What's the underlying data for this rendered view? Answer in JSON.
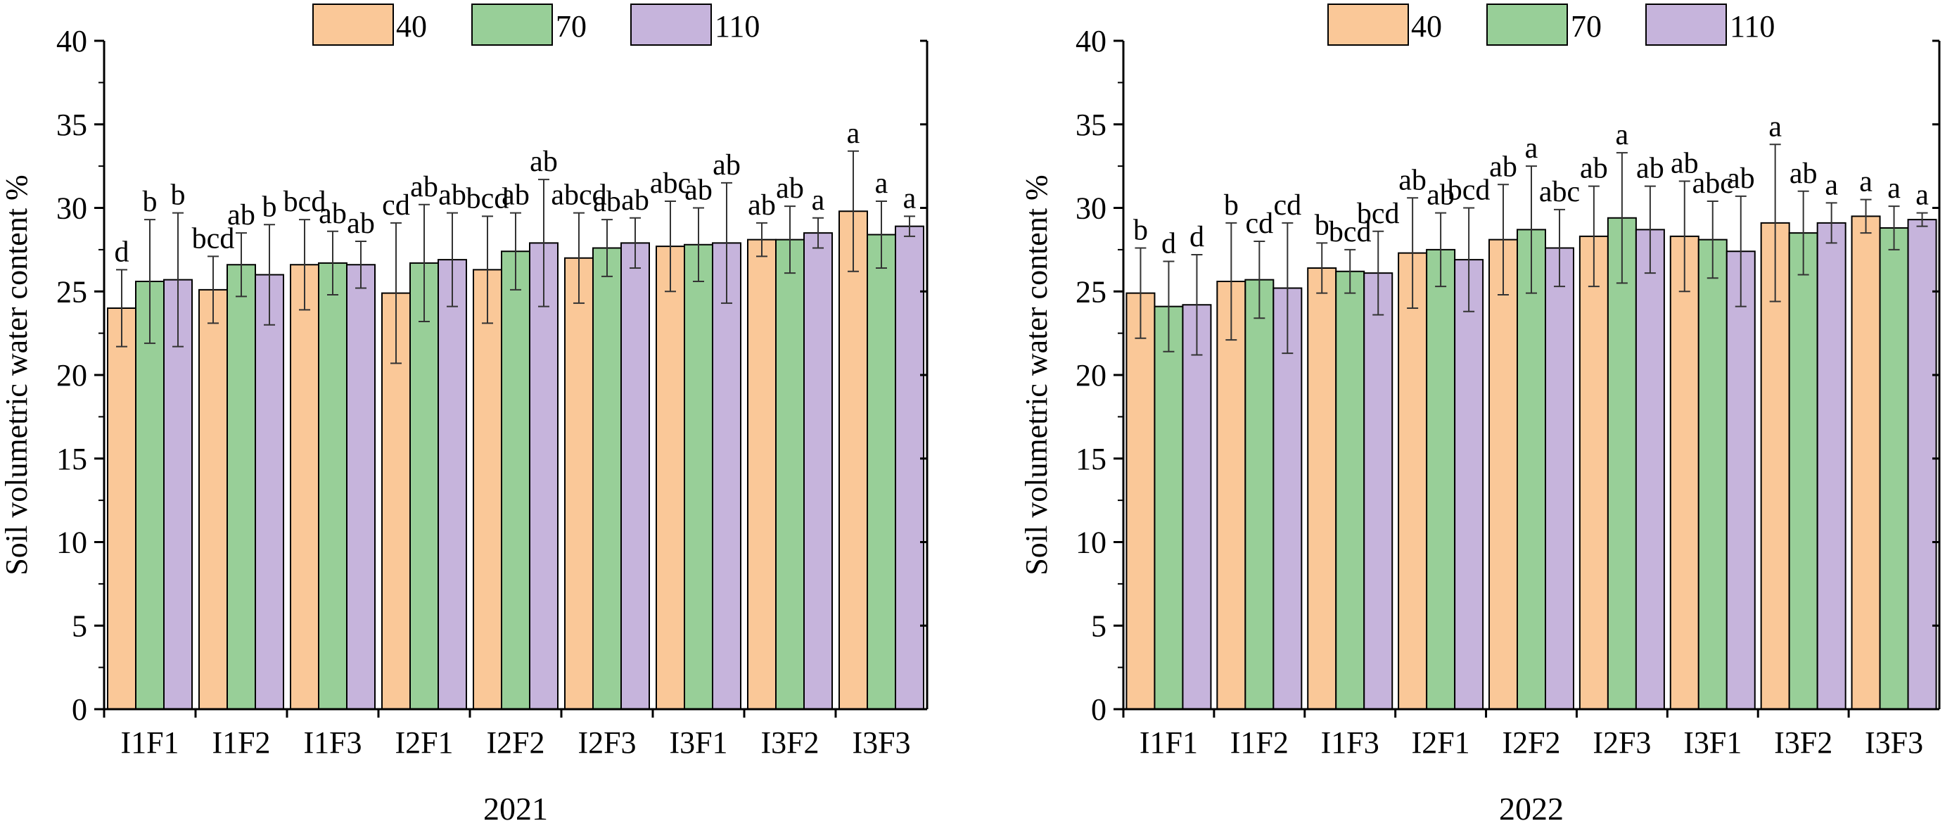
{
  "colors": {
    "s40": "#FAC898",
    "s70": "#98CF98",
    "s110": "#C6B4DC",
    "axis": "#000000",
    "error": "#333333"
  },
  "chart_data": [
    {
      "type": "bar",
      "title": "2021",
      "xlabel": "2021",
      "ylabel": "Soil volumetric water content %",
      "ylim": [
        0,
        40
      ],
      "yticks": [
        "0",
        "5",
        "10",
        "15",
        "20",
        "25",
        "30",
        "35",
        "40"
      ],
      "categories": [
        "I1F1",
        "I1F2",
        "I1F3",
        "I2F1",
        "I2F2",
        "I2F3",
        "I3F1",
        "I3F2",
        "I3F3"
      ],
      "legend": [
        "40",
        "70",
        "110"
      ],
      "legend_position": "top-center",
      "series": [
        {
          "name": "40",
          "values": [
            24.0,
            25.1,
            26.6,
            24.9,
            26.3,
            27.0,
            27.7,
            28.1,
            29.8
          ],
          "errors": [
            2.3,
            2.0,
            2.7,
            4.2,
            3.2,
            2.7,
            2.7,
            1.0,
            3.6
          ],
          "letters": [
            "d",
            "bcd",
            "bcd",
            "cd",
            "bcd",
            "abcd",
            "abc",
            "ab",
            "a"
          ]
        },
        {
          "name": "70",
          "values": [
            25.6,
            26.6,
            26.7,
            26.7,
            27.4,
            27.6,
            27.8,
            28.1,
            28.4
          ],
          "errors": [
            3.7,
            1.9,
            1.9,
            3.5,
            2.3,
            1.7,
            2.2,
            2.0,
            2.0
          ],
          "letters": [
            "b",
            "ab",
            "ab",
            "ab",
            "ab",
            "ab",
            "ab",
            "ab",
            "a"
          ]
        },
        {
          "name": "110",
          "values": [
            25.7,
            26.0,
            26.6,
            26.9,
            27.9,
            27.9,
            27.9,
            28.5,
            28.9
          ],
          "errors": [
            4.0,
            3.0,
            1.4,
            2.8,
            3.8,
            1.5,
            3.6,
            0.9,
            0.6
          ],
          "letters": [
            "b",
            "b",
            "ab",
            "ab",
            "ab",
            "ab",
            "ab",
            "a",
            "a"
          ]
        }
      ]
    },
    {
      "type": "bar",
      "title": "2022",
      "xlabel": "2022",
      "ylabel": "Soil volumetric water content %",
      "ylim": [
        0,
        40
      ],
      "yticks": [
        "0",
        "5",
        "10",
        "15",
        "20",
        "25",
        "30",
        "35",
        "40"
      ],
      "categories": [
        "I1F1",
        "I1F2",
        "I1F3",
        "I2F1",
        "I2F2",
        "I2F3",
        "I3F1",
        "I3F2",
        "I3F3"
      ],
      "legend": [
        "40",
        "70",
        "110"
      ],
      "legend_position": "top-center",
      "series": [
        {
          "name": "40",
          "values": [
            24.9,
            25.6,
            26.4,
            27.3,
            28.1,
            28.3,
            28.3,
            29.1,
            29.5
          ],
          "errors": [
            2.7,
            3.5,
            1.5,
            3.3,
            3.3,
            3.0,
            3.3,
            4.7,
            1.0
          ],
          "letters": [
            "b",
            "b",
            "b",
            "ab",
            "ab",
            "ab",
            "ab",
            "a",
            "a"
          ]
        },
        {
          "name": "70",
          "values": [
            24.1,
            25.7,
            26.2,
            27.5,
            28.7,
            29.4,
            28.1,
            28.5,
            28.8
          ],
          "errors": [
            2.7,
            2.3,
            1.3,
            2.2,
            3.8,
            3.9,
            2.3,
            2.5,
            1.3
          ],
          "letters": [
            "d",
            "cd",
            "bcd",
            "ab",
            "a",
            "a",
            "abc",
            "ab",
            "a"
          ]
        },
        {
          "name": "110",
          "values": [
            24.2,
            25.2,
            26.1,
            26.9,
            27.6,
            28.7,
            27.4,
            29.1,
            29.3
          ],
          "errors": [
            3.0,
            3.9,
            2.5,
            3.1,
            2.3,
            2.6,
            3.3,
            1.2,
            0.4
          ],
          "letters": [
            "d",
            "cd",
            "bcd",
            "bcd",
            "abc",
            "ab",
            "ab",
            "a",
            "a"
          ]
        }
      ]
    }
  ]
}
